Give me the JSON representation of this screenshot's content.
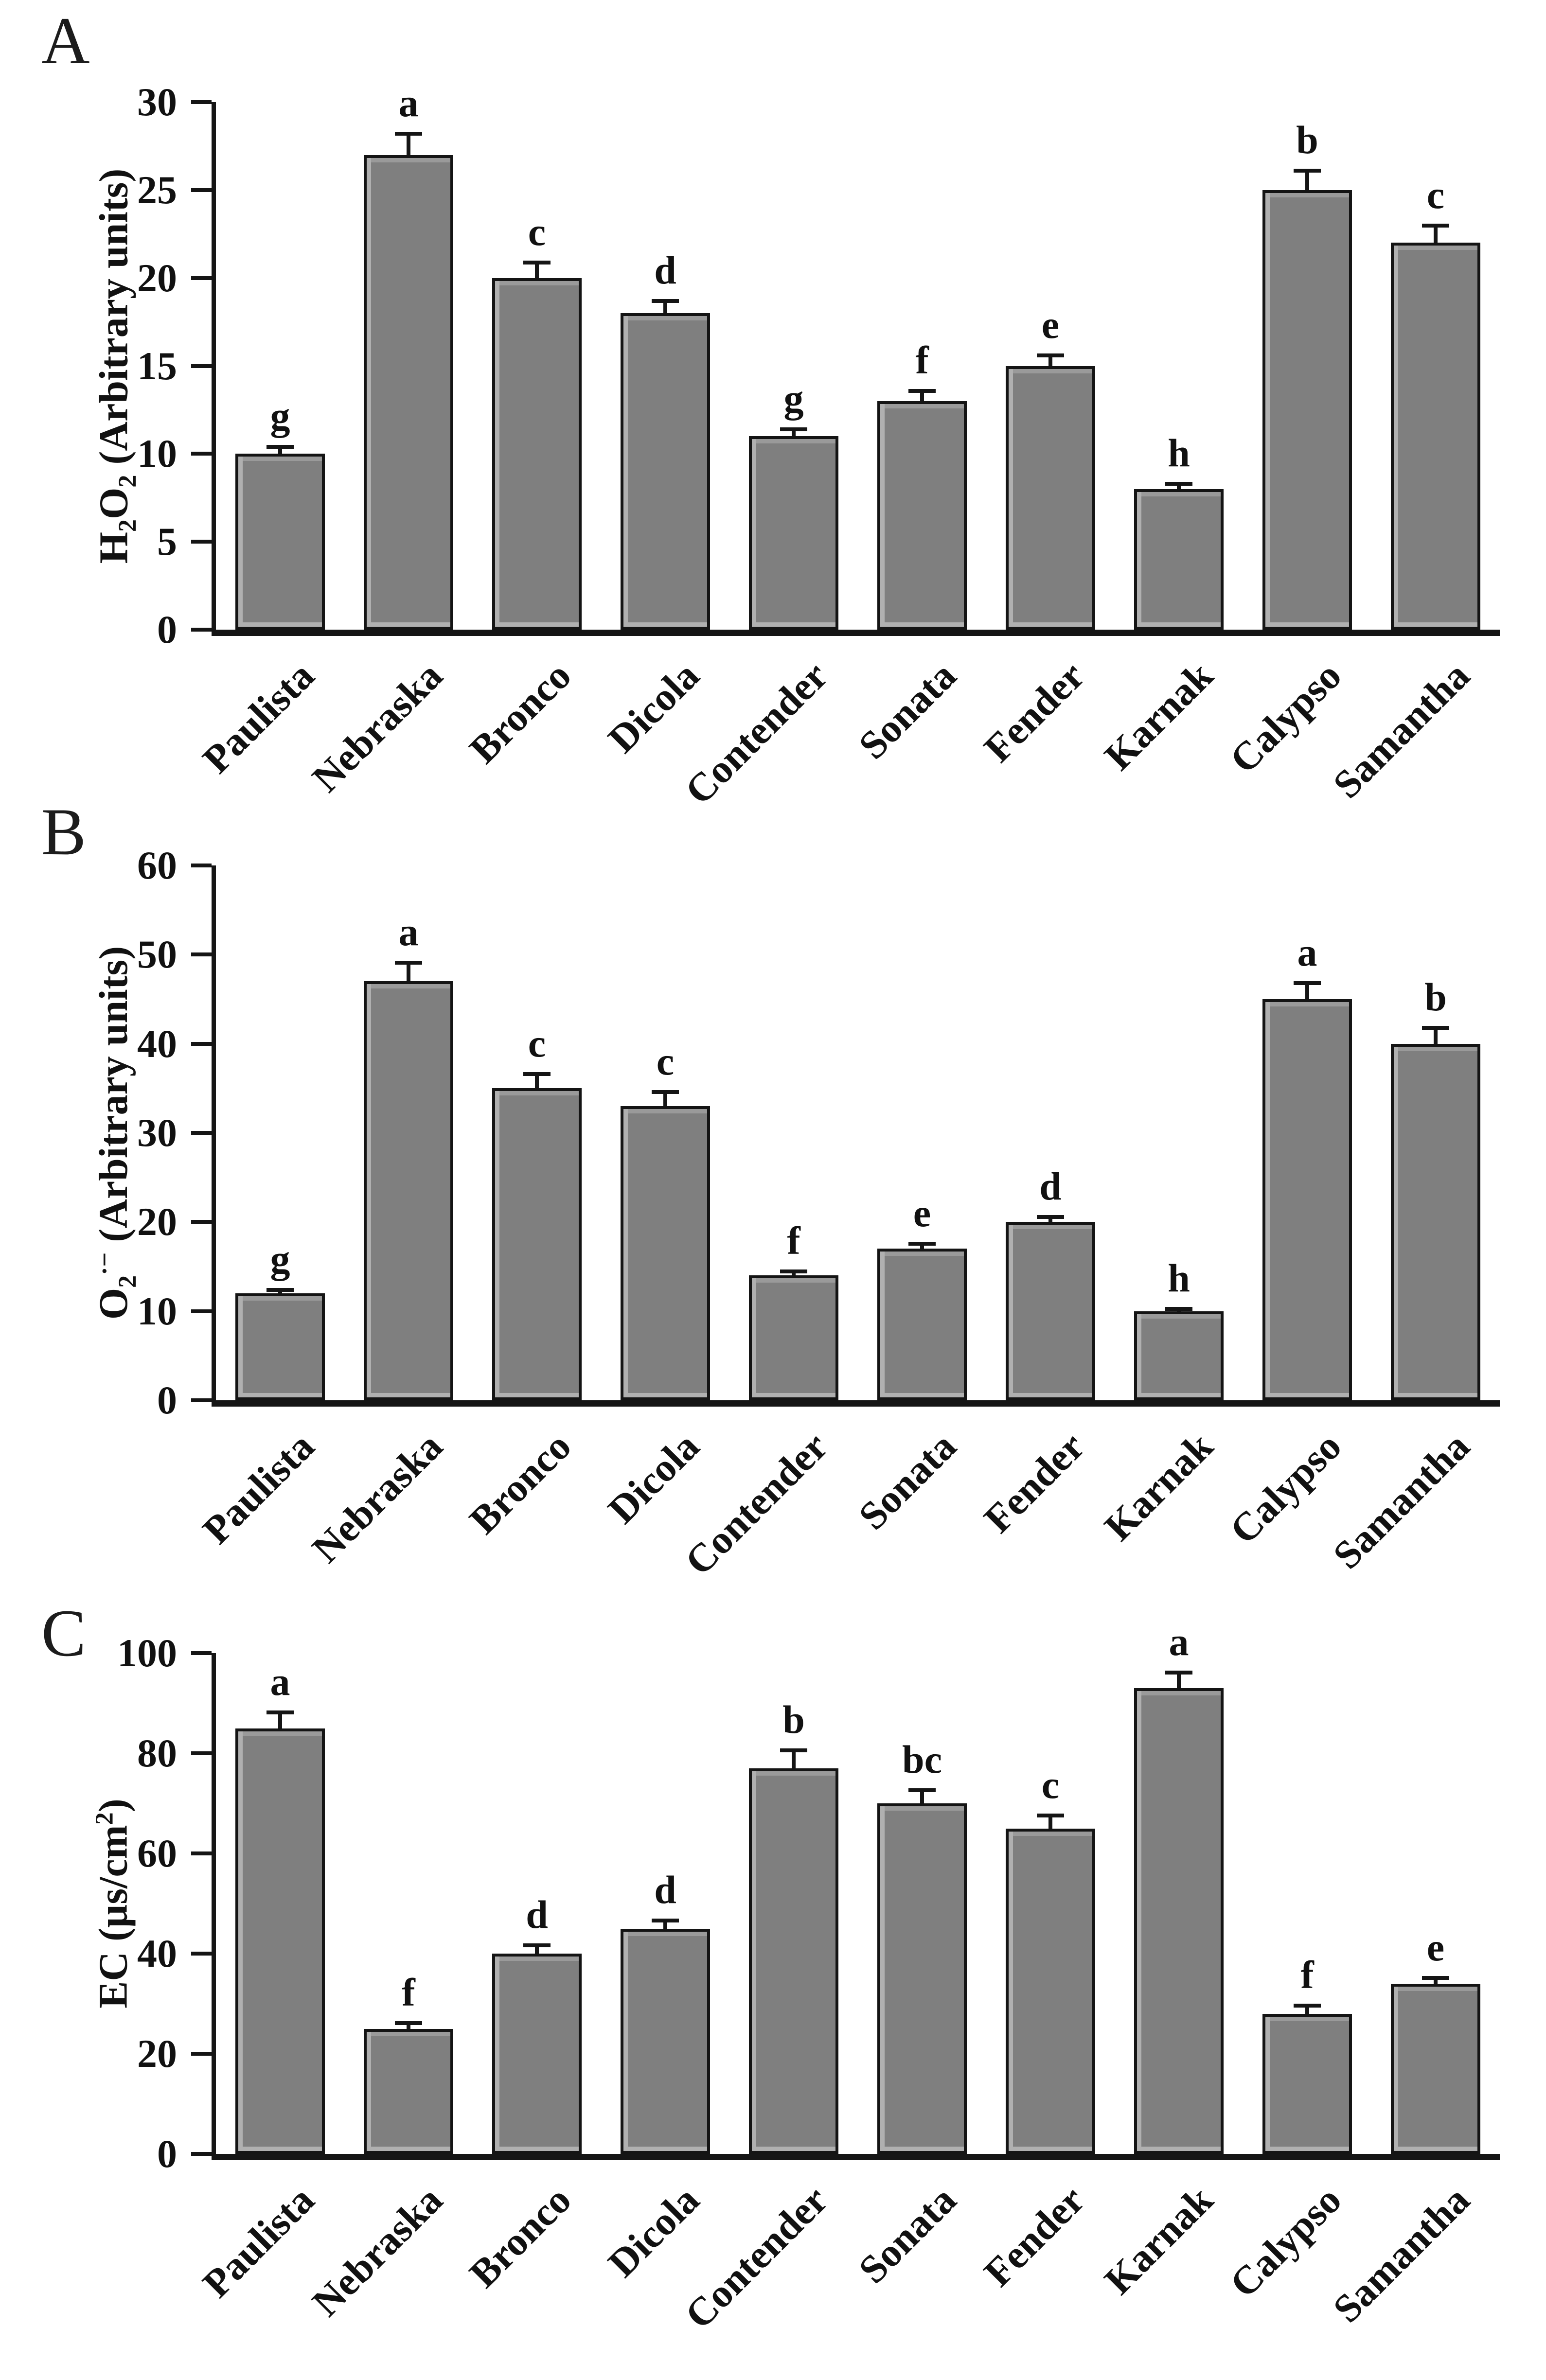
{
  "colors": {
    "bar_fill": "#7f7f7f",
    "bar_border": "#141414",
    "axis": "#151515",
    "background": "#ffffff",
    "text": "#111111"
  },
  "chart_data": [
    {
      "type": "bar",
      "panel": "A",
      "ylabel": "H2O2 (Arbitrary units)",
      "ylabel_segments": [
        {
          "t": "H"
        },
        {
          "t": "2",
          "type": "sub"
        },
        {
          "t": "O"
        },
        {
          "t": "2",
          "type": "sub"
        },
        {
          "t": " (Arbitrary units)"
        }
      ],
      "xlabel": "",
      "ylim": [
        0,
        30
      ],
      "ytick_step": 5,
      "grid": false,
      "legend": null,
      "categories": [
        "Paulista",
        "Nebraska",
        "Bronco",
        "Dicola",
        "Contender",
        "Sonata",
        "Fender",
        "Karnak",
        "Calypso",
        "Samantha"
      ],
      "values": [
        10,
        27,
        20,
        18,
        11,
        13,
        15,
        8,
        25,
        22
      ],
      "errors": [
        0.5,
        1.3,
        1.0,
        0.8,
        0.5,
        0.7,
        0.7,
        0.4,
        1.2,
        1.1
      ],
      "sig_letters": [
        "g",
        "a",
        "c",
        "d",
        "g",
        "f",
        "e",
        "h",
        "b",
        "c"
      ]
    },
    {
      "type": "bar",
      "panel": "B",
      "ylabel": "O2·− (Arbitrary units)",
      "ylabel_segments": [
        {
          "t": "O"
        },
        {
          "t": "2",
          "type": "sub"
        },
        {
          "t": "·−",
          "type": "sup"
        },
        {
          "t": " (Arbitrary units)"
        }
      ],
      "xlabel": "",
      "ylim": [
        0,
        60
      ],
      "ytick_step": 10,
      "grid": false,
      "legend": null,
      "categories": [
        "Paulista",
        "Nebraska",
        "Bronco",
        "Dicola",
        "Contender",
        "Sonata",
        "Fender",
        "Karnak",
        "Calypso",
        "Samantha"
      ],
      "values": [
        12,
        47,
        35,
        33,
        14,
        17,
        20,
        10,
        45,
        40
      ],
      "errors": [
        0.6,
        2.3,
        1.8,
        1.8,
        0.7,
        0.8,
        0.8,
        0.5,
        2.0,
        2.0
      ],
      "sig_letters": [
        "g",
        "a",
        "c",
        "c",
        "f",
        "e",
        "d",
        "h",
        "a",
        "b"
      ]
    },
    {
      "type": "bar",
      "panel": "C",
      "ylabel": "EC (µs/cm2)",
      "ylabel_segments": [
        {
          "t": "EC (µs/cm"
        },
        {
          "t": "2",
          "type": "sup"
        },
        {
          "t": ")"
        }
      ],
      "xlabel": "",
      "ylim": [
        0,
        100
      ],
      "ytick_step": 20,
      "grid": false,
      "legend": null,
      "categories": [
        "Paulista",
        "Nebraska",
        "Bronco",
        "Dicola",
        "Contender",
        "Sonata",
        "Fender",
        "Karnak",
        "Calypso",
        "Samantha"
      ],
      "values": [
        85,
        25,
        40,
        45,
        77,
        70,
        65,
        93,
        28,
        34
      ],
      "errors": [
        3.5,
        1.5,
        2.0,
        2.0,
        4.0,
        3.0,
        3.0,
        3.5,
        2.0,
        1.5
      ],
      "sig_letters": [
        "a",
        "f",
        "d",
        "d",
        "b",
        "bc",
        "c",
        "a",
        "f",
        "e"
      ]
    }
  ]
}
